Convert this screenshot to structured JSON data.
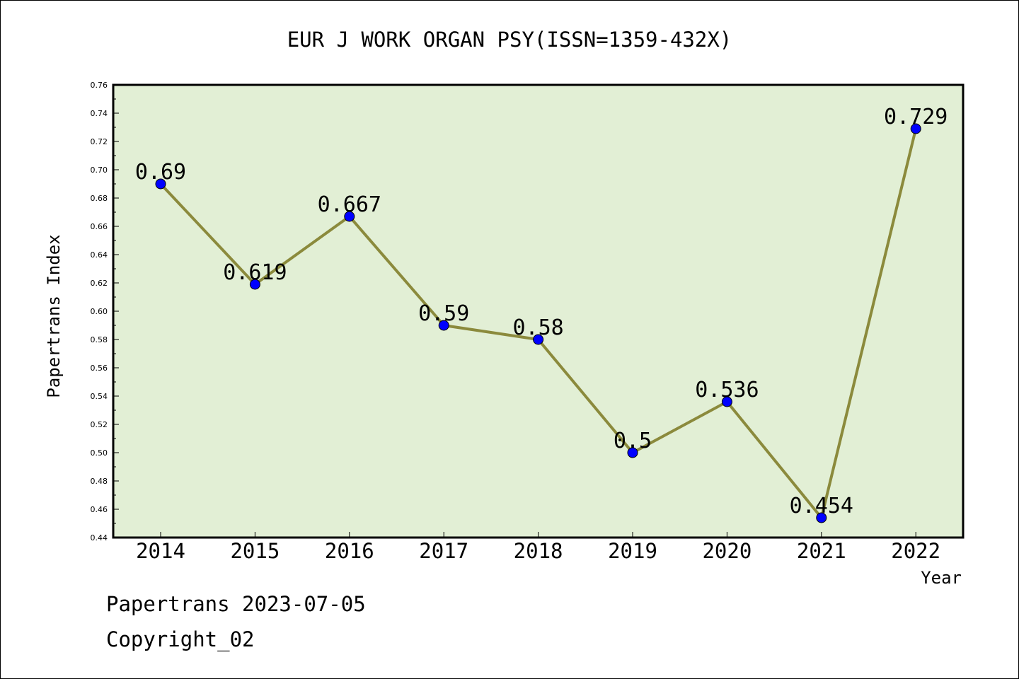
{
  "chart_data": {
    "type": "line",
    "title": "EUR J WORK ORGAN PSY(ISSN=1359-432X)",
    "xlabel": "Year",
    "ylabel": "Papertrans Index",
    "categories": [
      "2014",
      "2015",
      "2016",
      "2017",
      "2018",
      "2019",
      "2020",
      "2021",
      "2022"
    ],
    "values": [
      0.69,
      0.619,
      0.667,
      0.59,
      0.58,
      0.5,
      0.536,
      0.454,
      0.729
    ],
    "data_labels": [
      "0.69",
      "0.619",
      "0.667",
      "0.59",
      "0.58",
      "0.5",
      "0.536",
      "0.454",
      "0.729"
    ],
    "ylim": [
      0.44,
      0.76
    ],
    "yticks": [
      "0.44",
      "0.46",
      "0.48",
      "0.50",
      "0.52",
      "0.54",
      "0.56",
      "0.58",
      "0.60",
      "0.62",
      "0.64",
      "0.66",
      "0.68",
      "0.70",
      "0.72",
      "0.74",
      "0.76"
    ],
    "grid": false,
    "colors": {
      "plot_background": "#e2efd5",
      "line": "#8b8a3c",
      "marker": "#0000ff"
    }
  },
  "footer": {
    "line1": "Papertrans 2023-07-05",
    "line2": "Copyright_02"
  }
}
